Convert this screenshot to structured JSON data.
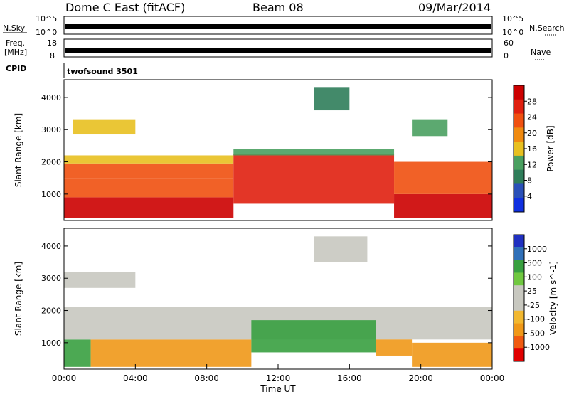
{
  "header": {
    "station": "Dome C East (fitACF)",
    "beam": "Beam 08",
    "date": "09/Mar/2014"
  },
  "noise_panel": {
    "left_label": "N.Sky",
    "right_label": "N.Search",
    "ticks_left": [
      "10^5",
      "10^0"
    ],
    "ticks_right": [
      "10^5",
      "10^0"
    ]
  },
  "freq_panel": {
    "left_label_1": "Freq.",
    "left_label_2": "[MHz]",
    "right_label": "Nave",
    "ticks_left": [
      "18",
      "8"
    ],
    "ticks_right": [
      "60",
      "0"
    ]
  },
  "cpid_panel": {
    "label": "CPID",
    "value": "twofsound 3501"
  },
  "colors": {
    "power_scale": [
      "#1030e0",
      "#2a50b8",
      "#2f7d5a",
      "#4aa060",
      "#e8c020",
      "#f08a10",
      "#f05010",
      "#e02010",
      "#cc0000"
    ],
    "velocity_scale": [
      "#e00000",
      "#f05a10",
      "#f09818",
      "#f2b830",
      "#c8c8c0",
      "#c8c8c0",
      "#70c840",
      "#38a040",
      "#3070b8",
      "#2030c0"
    ]
  },
  "chart_data": [
    {
      "type": "heatmap",
      "name": "power",
      "ylabel": "Slant Range [km]",
      "yticks": [
        1000,
        2000,
        3000,
        4000
      ],
      "ylim": [
        180,
        4550
      ],
      "xlim": [
        0,
        24
      ],
      "colorbar": {
        "label": "Power [dB]",
        "ticks": [
          "28",
          "24",
          "20",
          "16",
          "12",
          "8",
          "4"
        ],
        "range": [
          0,
          30
        ]
      },
      "regions": [
        {
          "t0": 0.0,
          "t1": 9.5,
          "r0": 250,
          "r1": 900,
          "value": 27
        },
        {
          "t0": 0.0,
          "t1": 9.5,
          "r0": 900,
          "r1": 1500,
          "value": 20
        },
        {
          "t0": 0.0,
          "t1": 9.5,
          "r0": 1500,
          "r1": 1950,
          "value": 23
        },
        {
          "t0": 0.0,
          "t1": 9.5,
          "r0": 1950,
          "r1": 2200,
          "value": 14
        },
        {
          "t0": 9.5,
          "t1": 18.5,
          "r0": 700,
          "r1": 2250,
          "value": 24
        },
        {
          "t0": 9.5,
          "t1": 18.5,
          "r0": 2200,
          "r1": 2400,
          "value": 10
        },
        {
          "t0": 18.5,
          "t1": 24.0,
          "r0": 250,
          "r1": 1000,
          "value": 27
        },
        {
          "t0": 18.5,
          "t1": 24.0,
          "r0": 1000,
          "r1": 2000,
          "value": 21
        },
        {
          "t0": 0.5,
          "t1": 4.0,
          "r0": 2850,
          "r1": 3300,
          "value": 16
        },
        {
          "t0": 14.0,
          "t1": 16.0,
          "r0": 3600,
          "r1": 4300,
          "value": 8
        },
        {
          "t0": 19.5,
          "t1": 21.5,
          "r0": 2800,
          "r1": 3300,
          "value": 12
        }
      ]
    },
    {
      "type": "heatmap",
      "name": "velocity",
      "ylabel": "Slant Range [km]",
      "xlabel": "Time UT",
      "yticks": [
        1000,
        2000,
        3000,
        4000
      ],
      "ylim": [
        180,
        4550
      ],
      "xlim": [
        0,
        24
      ],
      "xticks": [
        "00:00",
        "04:00",
        "08:00",
        "12:00",
        "16:00",
        "20:00",
        "00:00"
      ],
      "colorbar": {
        "label": "Velocity [m s^-1]",
        "ticks": [
          "1000",
          "500",
          "100",
          "25",
          "-25",
          "-100",
          "-500",
          "-1000"
        ]
      },
      "regions": [
        {
          "t0": 0.0,
          "t1": 1.5,
          "r0": 250,
          "r1": 1100,
          "value": 200
        },
        {
          "t0": 1.5,
          "t1": 10.5,
          "r0": 250,
          "r1": 1100,
          "value": -150
        },
        {
          "t0": 0.0,
          "t1": 24.0,
          "r0": 1100,
          "r1": 2100,
          "value": 0
        },
        {
          "t0": 10.5,
          "t1": 17.5,
          "r0": 700,
          "r1": 1700,
          "value": 300
        },
        {
          "t0": 17.5,
          "t1": 19.5,
          "r0": 600,
          "r1": 1100,
          "value": -300
        },
        {
          "t0": 19.5,
          "t1": 24.0,
          "r0": 250,
          "r1": 1000,
          "value": -150
        },
        {
          "t0": 0.0,
          "t1": 4.0,
          "r0": 2700,
          "r1": 3200,
          "value": 0
        },
        {
          "t0": 14.0,
          "t1": 17.0,
          "r0": 3500,
          "r1": 4300,
          "value": 0
        }
      ]
    }
  ]
}
